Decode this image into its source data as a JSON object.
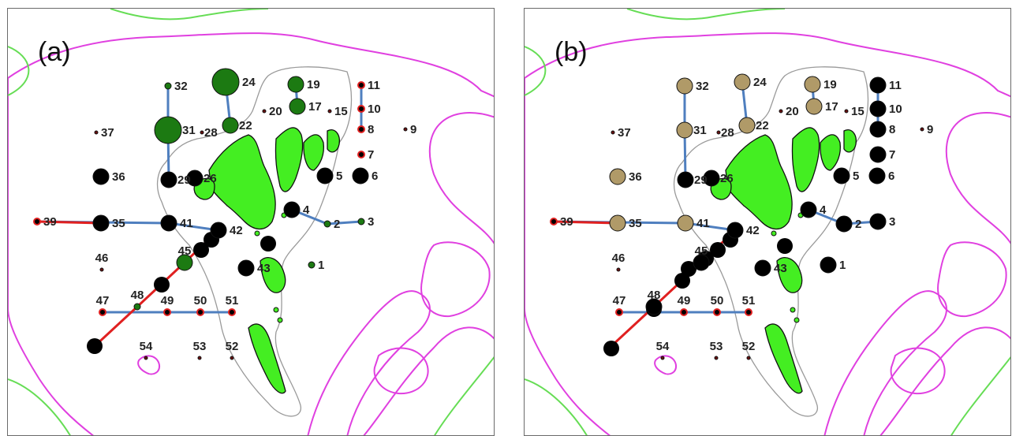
{
  "colors": {
    "contour_magenta": "#e040e0",
    "contour_green": "#66dd55",
    "island_fill": "#44ee22",
    "island_outline": "#111111",
    "shelf_outline": "#9a9a9a",
    "link_blue": "#4f7fbf",
    "link_red": "#e02020",
    "node_black": "#000000",
    "node_green": "#1c7a12",
    "node_tan": "#b09a68",
    "site_dot": "#6b1010",
    "site_ring_red": "#e02020"
  },
  "panels": [
    {
      "label": "(a)",
      "legend_meaning_note_absent": true,
      "nodes": [
        {
          "id": "1",
          "kind": "green",
          "level": 1
        },
        {
          "id": "2",
          "kind": "green",
          "level": 1
        },
        {
          "id": "3",
          "kind": "green",
          "level": 1
        },
        {
          "id": "4",
          "kind": "black",
          "level": 3
        },
        {
          "id": "5",
          "kind": "black",
          "level": 3
        },
        {
          "id": "6",
          "kind": "black",
          "level": 3
        },
        {
          "id": "7",
          "kind": "red-ring",
          "level": 1
        },
        {
          "id": "8",
          "kind": "red-ring",
          "level": 1
        },
        {
          "id": "9",
          "kind": "site",
          "level": 0
        },
        {
          "id": "10",
          "kind": "red-ring",
          "level": 1
        },
        {
          "id": "11",
          "kind": "red-ring",
          "level": 1
        },
        {
          "id": "15",
          "kind": "site",
          "level": 0
        },
        {
          "id": "17",
          "kind": "green",
          "level": 3
        },
        {
          "id": "19",
          "kind": "green",
          "level": 3
        },
        {
          "id": "20",
          "kind": "site",
          "level": 0
        },
        {
          "id": "22",
          "kind": "green",
          "level": 3
        },
        {
          "id": "24",
          "kind": "green",
          "level": 5
        },
        {
          "id": "26",
          "kind": "black",
          "level": 3
        },
        {
          "id": "28",
          "kind": "site",
          "level": 0
        },
        {
          "id": "29",
          "kind": "black",
          "level": 3
        },
        {
          "id": "31",
          "kind": "green",
          "level": 5
        },
        {
          "id": "32",
          "kind": "green",
          "level": 1
        },
        {
          "id": "35",
          "kind": "black",
          "level": 3
        },
        {
          "id": "36",
          "kind": "black",
          "level": 3
        },
        {
          "id": "37",
          "kind": "site",
          "level": 0
        },
        {
          "id": "39",
          "kind": "red-ring",
          "level": 1
        },
        {
          "id": "41",
          "kind": "black",
          "level": 3
        },
        {
          "id": "42",
          "kind": "black",
          "level": 3
        },
        {
          "id": "43",
          "kind": "black",
          "level": 3
        },
        {
          "id": "45",
          "kind": "green",
          "level": 3
        },
        {
          "id": "46",
          "kind": "site",
          "level": 0
        },
        {
          "id": "47",
          "kind": "red-ring",
          "level": 1
        },
        {
          "id": "48",
          "kind": "green",
          "level": 1
        },
        {
          "id": "49",
          "kind": "red-ring",
          "level": 1
        },
        {
          "id": "50",
          "kind": "red-ring",
          "level": 1
        },
        {
          "id": "51",
          "kind": "red-ring",
          "level": 1
        },
        {
          "id": "52",
          "kind": "site",
          "level": 0
        },
        {
          "id": "53",
          "kind": "site",
          "level": 0
        },
        {
          "id": "54",
          "kind": "site",
          "level": 0
        }
      ]
    },
    {
      "label": "(b)",
      "nodes": [
        {
          "id": "1",
          "kind": "black",
          "level": 3
        },
        {
          "id": "2",
          "kind": "black",
          "level": 3
        },
        {
          "id": "3",
          "kind": "black",
          "level": 3
        },
        {
          "id": "4",
          "kind": "black",
          "level": 3
        },
        {
          "id": "5",
          "kind": "black",
          "level": 3
        },
        {
          "id": "6",
          "kind": "black",
          "level": 3
        },
        {
          "id": "7",
          "kind": "black",
          "level": 3
        },
        {
          "id": "8",
          "kind": "black",
          "level": 3
        },
        {
          "id": "9",
          "kind": "site",
          "level": 0
        },
        {
          "id": "10",
          "kind": "black",
          "level": 3
        },
        {
          "id": "11",
          "kind": "black",
          "level": 3
        },
        {
          "id": "15",
          "kind": "site",
          "level": 0
        },
        {
          "id": "17",
          "kind": "tan",
          "level": 3
        },
        {
          "id": "19",
          "kind": "tan",
          "level": 3
        },
        {
          "id": "20",
          "kind": "site",
          "level": 0
        },
        {
          "id": "22",
          "kind": "tan",
          "level": 3
        },
        {
          "id": "24",
          "kind": "tan",
          "level": 3
        },
        {
          "id": "26",
          "kind": "black",
          "level": 3
        },
        {
          "id": "28",
          "kind": "site",
          "level": 0
        },
        {
          "id": "29",
          "kind": "black",
          "level": 3
        },
        {
          "id": "31",
          "kind": "tan",
          "level": 3
        },
        {
          "id": "32",
          "kind": "tan",
          "level": 3
        },
        {
          "id": "35",
          "kind": "tan",
          "level": 3
        },
        {
          "id": "36",
          "kind": "tan",
          "level": 3
        },
        {
          "id": "37",
          "kind": "site",
          "level": 0
        },
        {
          "id": "39",
          "kind": "red-ring",
          "level": 1
        },
        {
          "id": "41",
          "kind": "tan",
          "level": 3
        },
        {
          "id": "42",
          "kind": "black",
          "level": 3
        },
        {
          "id": "43",
          "kind": "black",
          "level": 3
        },
        {
          "id": "45",
          "kind": "black",
          "level": 3
        },
        {
          "id": "46",
          "kind": "site",
          "level": 0
        },
        {
          "id": "47",
          "kind": "red-ring",
          "level": 1
        },
        {
          "id": "48",
          "kind": "black",
          "level": 3
        },
        {
          "id": "49",
          "kind": "red-ring",
          "level": 1
        },
        {
          "id": "50",
          "kind": "red-ring",
          "level": 1
        },
        {
          "id": "51",
          "kind": "red-ring",
          "level": 1
        },
        {
          "id": "52",
          "kind": "site",
          "level": 0
        },
        {
          "id": "53",
          "kind": "site",
          "level": 0
        },
        {
          "id": "54",
          "kind": "site",
          "level": 0
        }
      ]
    }
  ]
}
